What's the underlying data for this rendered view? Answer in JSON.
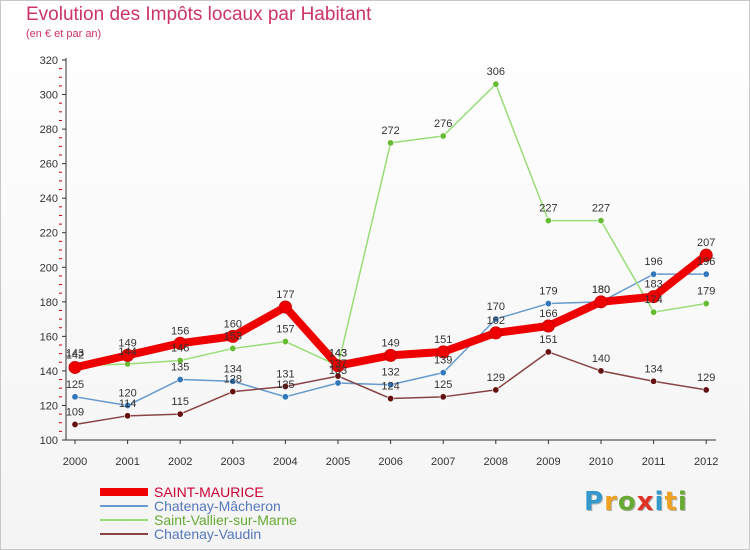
{
  "title": "Evolution des Impôts locaux par Habitant",
  "subtitle": "(en € et par an)",
  "logo": {
    "letters": [
      "P",
      "r",
      "o",
      "x",
      "i",
      "t",
      "i"
    ],
    "colors": [
      "#3399cc",
      "#f0a020",
      "#66aa33",
      "#dd3322",
      "#3399cc",
      "#f0a020",
      "#66aa33"
    ]
  },
  "chart_data": {
    "type": "line",
    "title": "Evolution des Impôts locaux par Habitant",
    "subtitle": "(en € et par an)",
    "xlabel": "",
    "ylabel": "",
    "x": [
      "2000",
      "2001",
      "2002",
      "2003",
      "2004",
      "2005",
      "2006",
      "2007",
      "2008",
      "2009",
      "2010",
      "2011",
      "2012"
    ],
    "ylim": [
      100,
      320
    ],
    "yticks": [
      100,
      120,
      140,
      160,
      180,
      200,
      220,
      240,
      260,
      280,
      300,
      320
    ],
    "grid": false,
    "legend": "bottom-left",
    "series": [
      {
        "name": "SAINT-MAURICE",
        "color": "#ee0000",
        "marker_color": "#cc0000",
        "emphasis": true,
        "values": [
          142,
          149,
          156,
          160,
          177,
          143,
          149,
          151,
          162,
          166,
          180,
          183,
          207
        ],
        "labels": [
          "142",
          "149",
          "156",
          "160",
          "177",
          "143",
          "149",
          "151",
          "162",
          "166",
          "180",
          "183",
          "207"
        ]
      },
      {
        "name": "Chatenay-Mâcheron",
        "color": "#6699cc",
        "marker_color": "#3377bb",
        "emphasis": false,
        "values": [
          125,
          120,
          135,
          134,
          125,
          133,
          132,
          139,
          170,
          179,
          180,
          196,
          196
        ],
        "labels": [
          "125",
          "120",
          "135",
          "134",
          "125",
          "133",
          "132",
          "139",
          "170",
          "179",
          "180",
          "196",
          "196"
        ]
      },
      {
        "name": "Saint-Vallier-sur-Marne",
        "color": "#99dd77",
        "marker_color": "#66bb33",
        "emphasis": false,
        "values": [
          143,
          144,
          146,
          153,
          157,
          143,
          272,
          276,
          306,
          227,
          227,
          174,
          179
        ],
        "labels": [
          "143",
          "144",
          "146",
          "153",
          "157",
          "143",
          "272",
          "276",
          "306",
          "227",
          "227",
          "174",
          "179"
        ]
      },
      {
        "name": "Chatenay-Vaudin",
        "color": "#884444",
        "marker_color": "#661111",
        "emphasis": false,
        "values": [
          109,
          114,
          115,
          128,
          131,
          137,
          124,
          125,
          129,
          151,
          140,
          134,
          129
        ],
        "labels": [
          "109",
          "114",
          "115",
          "128",
          "131",
          "137",
          "124",
          "125",
          "129",
          "151",
          "140",
          "134",
          "129"
        ]
      }
    ]
  }
}
